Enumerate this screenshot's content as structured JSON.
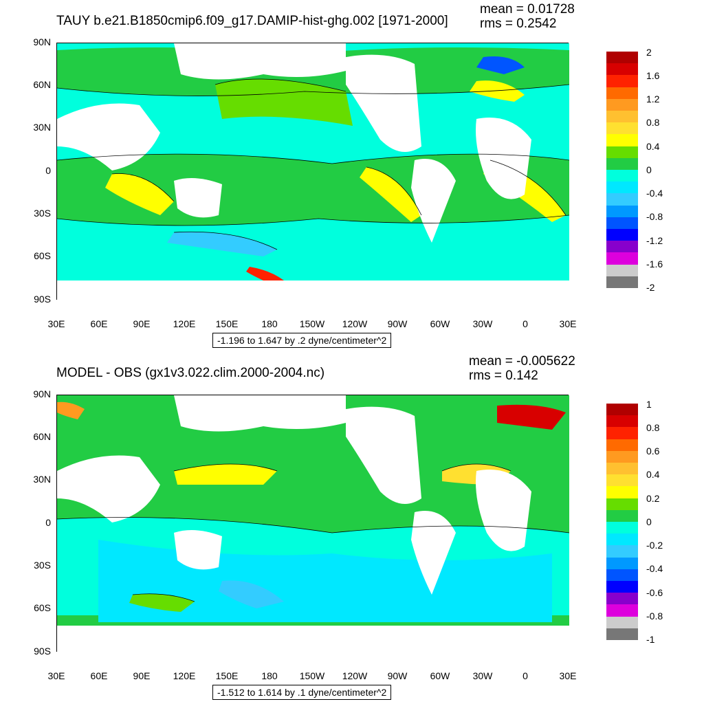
{
  "panels": [
    {
      "title": "TAUY b.e21.B1850cmip6.f09_g17.DAMIP-hist-ghg.002 [1971-2000]",
      "mean": "mean = 0.01728",
      "rms": "rms = 0.2542",
      "range_note": "-1.196 to 1.647 by .2 dyne/centimeter^2",
      "lat_labels": [
        "90N",
        "60N",
        "30N",
        "0",
        "30S",
        "60S",
        "90S"
      ],
      "lon_labels": [
        "30E",
        "60E",
        "90E",
        "120E",
        "150E",
        "180",
        "150W",
        "120W",
        "90W",
        "60W",
        "30W",
        "0",
        "30E"
      ],
      "colorbar": {
        "labels": [
          "2",
          "1.6",
          "1.2",
          "0.8",
          "0.4",
          "0",
          "-0.4",
          "-0.8",
          "-1.2",
          "-1.6",
          "-2"
        ],
        "colors": [
          "#b00000",
          "#d80000",
          "#ff2200",
          "#ff6a00",
          "#ff9a20",
          "#ffc030",
          "#ffe030",
          "#ffff00",
          "#66dd00",
          "#22cc44",
          "#00ffdd",
          "#00e8ff",
          "#33ccff",
          "#0099ff",
          "#0055ff",
          "#0000ff",
          "#8800cc",
          "#dd00dd",
          "#cccccc",
          "#777777"
        ]
      },
      "colors": {
        "land": "#ffffff",
        "ocean_base": "#22cc44"
      }
    },
    {
      "title": "MODEL - OBS (gx1v3.022.clim.2000-2004.nc)",
      "mean": "mean = -0.005622",
      "rms": "rms = 0.142",
      "range_note": "-1.512 to 1.614 by .1 dyne/centimeter^2",
      "lat_labels": [
        "90N",
        "60N",
        "30N",
        "0",
        "30S",
        "60S",
        "90S"
      ],
      "lon_labels": [
        "30E",
        "60E",
        "90E",
        "120E",
        "150E",
        "180",
        "150W",
        "120W",
        "90W",
        "60W",
        "30W",
        "0",
        "30E"
      ],
      "colorbar": {
        "labels": [
          "1",
          "0.8",
          "0.6",
          "0.4",
          "0.2",
          "0",
          "-0.2",
          "-0.4",
          "-0.6",
          "-0.8",
          "-1"
        ],
        "colors": [
          "#b00000",
          "#d80000",
          "#ff2200",
          "#ff6a00",
          "#ff9a20",
          "#ffc030",
          "#ffe030",
          "#ffff00",
          "#66dd00",
          "#22cc44",
          "#00ffdd",
          "#00e8ff",
          "#33ccff",
          "#0099ff",
          "#0055ff",
          "#0000ff",
          "#8800cc",
          "#dd00dd",
          "#cccccc",
          "#777777"
        ]
      },
      "colors": {
        "land": "#ffffff",
        "ocean_base": "#22cc44"
      }
    }
  ]
}
